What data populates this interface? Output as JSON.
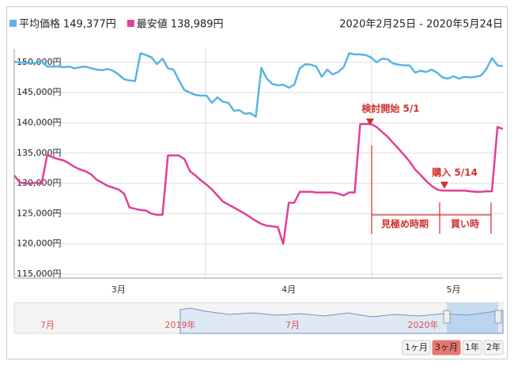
{
  "chart_data": {
    "type": "line",
    "date_range": "2020年2月25日 - 2020年5月24日",
    "categories": [
      null,
      null,
      null,
      null,
      null,
      null,
      null,
      null,
      null,
      null,
      null,
      null,
      null,
      null,
      null,
      null,
      null,
      null,
      null,
      "3月",
      null,
      null,
      null,
      null,
      null,
      null,
      null,
      null,
      null,
      null,
      null,
      null,
      null,
      null,
      null,
      null,
      null,
      null,
      null,
      null,
      null,
      null,
      null,
      null,
      null,
      null,
      null,
      null,
      null,
      null,
      "4月",
      null,
      null,
      null,
      null,
      null,
      null,
      null,
      null,
      null,
      null,
      null,
      null,
      null,
      null,
      null,
      null,
      null,
      null,
      null,
      null,
      null,
      null,
      null,
      null,
      null,
      null,
      null,
      null,
      null,
      "5月",
      null,
      null,
      null,
      null,
      null,
      null,
      null,
      null,
      null
    ],
    "series": [
      {
        "name": "平均価格",
        "legend_value": "149,377円",
        "color": "#5ab4e5",
        "values": [
          150100,
          150000,
          149900,
          149800,
          149900,
          150200,
          149300,
          149300,
          149300,
          149200,
          149300,
          149000,
          149200,
          149300,
          149000,
          148800,
          148700,
          148900,
          148600,
          148000,
          147200,
          147000,
          146900,
          151500,
          151200,
          150800,
          149700,
          150600,
          149000,
          148800,
          147000,
          145400,
          145000,
          144600,
          144500,
          144500,
          143300,
          144200,
          143500,
          143300,
          142000,
          142100,
          141500,
          141600,
          141000,
          149100,
          147300,
          146400,
          146200,
          146300,
          145800,
          146300,
          149000,
          149700,
          149600,
          149300,
          147600,
          148800,
          148000,
          148400,
          149200,
          151500,
          151300,
          151300,
          151200,
          150800,
          150000,
          150600,
          150500,
          149800,
          149600,
          149500,
          149500,
          148300,
          148600,
          148400,
          148800,
          148300,
          147500,
          147300,
          147700,
          147300,
          147600,
          147500,
          147600,
          147800,
          148900,
          150700,
          149500,
          149377
        ]
      },
      {
        "name": "最安値",
        "legend_value": "138,989円",
        "color": "#e0409a",
        "values": [
          131300,
          130200,
          130000,
          130000,
          130100,
          130000,
          134700,
          134300,
          134000,
          133800,
          133300,
          132700,
          132300,
          132000,
          131500,
          130600,
          130100,
          129600,
          129300,
          129000,
          128300,
          126000,
          125800,
          125600,
          125500,
          125000,
          124800,
          124800,
          134600,
          134600,
          134600,
          134000,
          132000,
          131300,
          130500,
          129800,
          129000,
          128000,
          127000,
          126500,
          126000,
          125500,
          125000,
          124400,
          123800,
          123300,
          123000,
          122900,
          122800,
          120000,
          126800,
          126800,
          128600,
          128600,
          128600,
          128500,
          128500,
          128500,
          128500,
          128300,
          128000,
          128500,
          128500,
          139800,
          139800,
          139800,
          139300,
          138500,
          137700,
          136700,
          135700,
          134700,
          133600,
          132300,
          131400,
          130400,
          129600,
          129000,
          128800,
          128800,
          128800,
          128800,
          128800,
          128700,
          128600,
          128600,
          128700,
          128700,
          139300,
          138989
        ]
      }
    ],
    "ylim": [
      114350,
      152200
    ],
    "yticks": [
      {
        "value": 115000,
        "label": "115,000円"
      },
      {
        "value": 120000,
        "label": "120,000円"
      },
      {
        "value": 125000,
        "label": "125,000円"
      },
      {
        "value": 130000,
        "label": "130,000円"
      },
      {
        "value": 135000,
        "label": "135,000円"
      },
      {
        "value": 140000,
        "label": "140,000円"
      },
      {
        "value": 145000,
        "label": "145,000円"
      },
      {
        "value": 150000,
        "label": "150,000円"
      }
    ],
    "grid": true,
    "annotations": [
      "検討開始 5/1",
      "購入 5/14",
      "見極め時期",
      "買い時"
    ],
    "navigator_labels": [
      "7月",
      "2019年",
      "7月",
      "2020年"
    ],
    "range_buttons": [
      "1ヶ月",
      "3ヶ月",
      "1年",
      "2年"
    ],
    "active_button": 1
  }
}
